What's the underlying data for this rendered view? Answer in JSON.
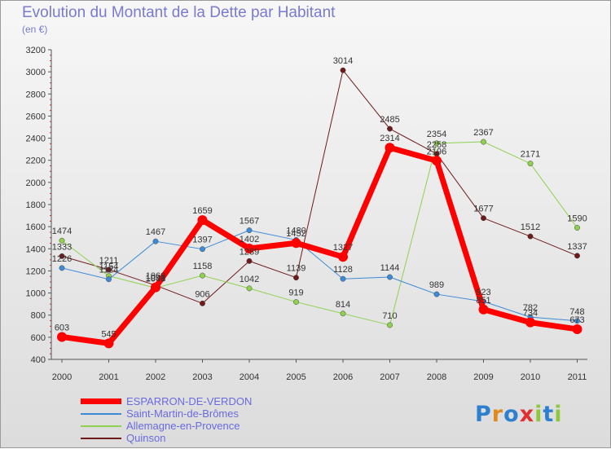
{
  "title": "Evolution du Montant de la Dette par Habitant",
  "subtitle": "(en €)",
  "logo": {
    "text": "Proxiti",
    "letter_colors": [
      "#2f7fcf",
      "#e08a1e",
      "#2f7fcf",
      "#e03030",
      "#8fc83f",
      "#2f7fcf",
      "#8fc83f"
    ]
  },
  "chart_data": {
    "type": "line",
    "title": "Evolution du Montant de la Dette par Habitant",
    "ylabel": "(en €)",
    "xlabel": "",
    "ylim": [
      400,
      3200
    ],
    "yticks": [
      400,
      600,
      800,
      1000,
      1200,
      1400,
      1600,
      1800,
      2000,
      2200,
      2400,
      2600,
      2800,
      3000,
      3200
    ],
    "categories": [
      "2000",
      "2001",
      "2002",
      "2003",
      "2004",
      "2005",
      "2006",
      "2007",
      "2008",
      "2009",
      "2010",
      "2011"
    ],
    "grid": false,
    "legend_position": "bottom-left",
    "series": [
      {
        "name": "Quinson",
        "color": "#6e1a1a",
        "width": 1,
        "values": [
          1333,
          1211,
          1069,
          906,
          1289,
          1139,
          3014,
          2485,
          2258,
          1677,
          1512,
          1337
        ]
      },
      {
        "name": "Allemagne-en-Provence",
        "color": "#8fd14f",
        "width": 1,
        "values": [
          1474,
          1154,
          1046,
          1158,
          1042,
          919,
          814,
          710,
          2354,
          2367,
          2171,
          1590
        ]
      },
      {
        "name": "Saint-Martin-de-Brômes",
        "color": "#3d8bd6",
        "width": 1,
        "values": [
          1226,
          1124,
          1467,
          1397,
          1567,
          1480,
          1128,
          1144,
          989,
          923,
          782,
          748
        ]
      },
      {
        "name": "ESPARRON-DE-VERDON",
        "color": "#ff0000",
        "width": 7,
        "values": [
          603,
          545,
          1051,
          1659,
          1402,
          1452,
          1327,
          2314,
          2196,
          851,
          734,
          673
        ]
      }
    ],
    "legend_order": [
      "ESPARRON-DE-VERDON",
      "Saint-Martin-de-Brômes",
      "Allemagne-en-Provence",
      "Quinson"
    ]
  }
}
